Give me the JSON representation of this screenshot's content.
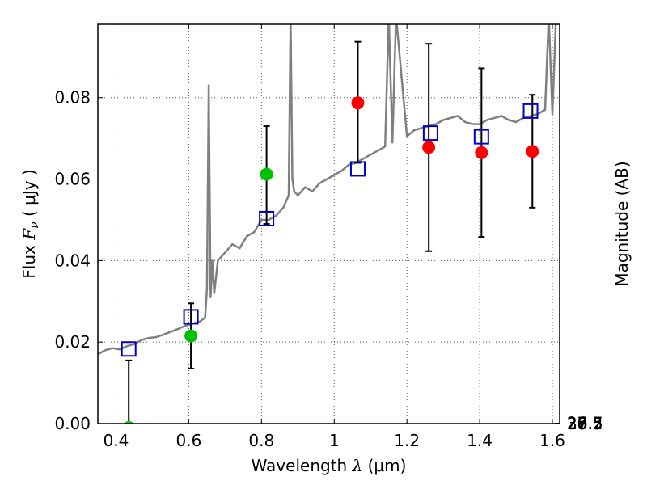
{
  "chart_data": {
    "type": "scatter",
    "title": "",
    "xlabel": "Wavelength  λ (μm)",
    "xlabel_parts": {
      "text": "Wavelength  ",
      "sym": "λ",
      "unit": " (μm)"
    },
    "ylabel": "Flux  Fν  ( μJy )",
    "ylabel_parts": {
      "text": "Flux  ",
      "sym": "F",
      "sub": "ν",
      "unit": "  ( μJy )"
    },
    "ylabel_right": "Magnitude (AB)",
    "xlim": [
      0.35,
      1.62
    ],
    "ylim": [
      0.0,
      0.098
    ],
    "grid": true,
    "x_ticks": [
      0.4,
      0.6,
      0.8,
      1.0,
      1.2,
      1.4,
      1.6
    ],
    "x_tick_labels": [
      "0.4",
      "0.6",
      "0.8",
      "1",
      "1.2",
      "1.4",
      "1.6"
    ],
    "y_ticks": [
      0.0,
      0.02,
      0.04,
      0.06,
      0.08
    ],
    "y_tick_labels": [
      "0.00",
      "0.02",
      "0.04",
      "0.06",
      "0.08"
    ],
    "mag_ticks": [
      26.5,
      26.7,
      27,
      27.2,
      27.5,
      28,
      28.5,
      29,
      30
    ],
    "mag_tick_labels": [
      "26.5",
      "26.7",
      "27",
      "27.2",
      "27.5",
      "28",
      "28.5",
      "29",
      "30"
    ],
    "colors": {
      "model": "#808080",
      "detection": "#00c000",
      "photometry": "#ff0000",
      "model_band": "#0000cc",
      "errorbar": "#000000",
      "grid": "#555555"
    },
    "series": [
      {
        "name": "detections",
        "marker": "circle",
        "color": "#00c000",
        "points": [
          {
            "x": 0.435,
            "y": -0.001,
            "err_lo": 0.0,
            "err_hi": 0.0155
          },
          {
            "x": 0.606,
            "y": 0.0215,
            "err_lo": 0.0135,
            "err_hi": 0.0295
          },
          {
            "x": 0.814,
            "y": 0.0612,
            "err_lo": 0.049,
            "err_hi": 0.073
          }
        ]
      },
      {
        "name": "photometry",
        "marker": "circle",
        "color": "#ff0000",
        "points": [
          {
            "x": 1.065,
            "y": 0.0787,
            "err_lo": 0.064,
            "err_hi": 0.0937
          },
          {
            "x": 1.26,
            "y": 0.0678,
            "err_lo": 0.0423,
            "err_hi": 0.0932
          },
          {
            "x": 1.405,
            "y": 0.0665,
            "err_lo": 0.0458,
            "err_hi": 0.0872
          },
          {
            "x": 1.545,
            "y": 0.0668,
            "err_lo": 0.053,
            "err_hi": 0.0807
          }
        ]
      },
      {
        "name": "model band fluxes",
        "marker": "square",
        "color": "#0000cc",
        "points": [
          {
            "x": 0.435,
            "y": 0.0183
          },
          {
            "x": 0.606,
            "y": 0.0262
          },
          {
            "x": 0.814,
            "y": 0.0503
          },
          {
            "x": 1.065,
            "y": 0.0625
          },
          {
            "x": 1.265,
            "y": 0.0713
          },
          {
            "x": 1.405,
            "y": 0.0704
          },
          {
            "x": 1.54,
            "y": 0.0767
          }
        ]
      }
    ],
    "model_spectrum": {
      "name": "template spectrum",
      "color": "#808080",
      "x": [
        0.35,
        0.37,
        0.39,
        0.41,
        0.43,
        0.45,
        0.47,
        0.49,
        0.51,
        0.53,
        0.55,
        0.57,
        0.59,
        0.61,
        0.63,
        0.645,
        0.65,
        0.655,
        0.66,
        0.665,
        0.67,
        0.68,
        0.7,
        0.72,
        0.74,
        0.76,
        0.78,
        0.8,
        0.82,
        0.84,
        0.86,
        0.875,
        0.88,
        0.885,
        0.89,
        0.9,
        0.92,
        0.94,
        0.96,
        0.98,
        1.0,
        1.02,
        1.04,
        1.06,
        1.08,
        1.1,
        1.12,
        1.14,
        1.15,
        1.16,
        1.17,
        1.2,
        1.22,
        1.24,
        1.26,
        1.28,
        1.3,
        1.32,
        1.34,
        1.36,
        1.38,
        1.4,
        1.42,
        1.44,
        1.46,
        1.48,
        1.5,
        1.52,
        1.54,
        1.56,
        1.58,
        1.59,
        1.6,
        1.61,
        1.62
      ],
      "y": [
        0.017,
        0.018,
        0.0185,
        0.0182,
        0.019,
        0.0195,
        0.0205,
        0.021,
        0.0212,
        0.0218,
        0.0225,
        0.0232,
        0.024,
        0.0245,
        0.025,
        0.026,
        0.033,
        0.083,
        0.031,
        0.04,
        0.032,
        0.04,
        0.042,
        0.044,
        0.043,
        0.046,
        0.047,
        0.05,
        0.05,
        0.051,
        0.053,
        0.056,
        0.1,
        0.06,
        0.057,
        0.056,
        0.058,
        0.057,
        0.059,
        0.06,
        0.061,
        0.062,
        0.0635,
        0.064,
        0.065,
        0.066,
        0.067,
        0.068,
        0.1,
        0.069,
        0.1,
        0.0705,
        0.072,
        0.0725,
        0.073,
        0.0735,
        0.0745,
        0.075,
        0.0755,
        0.074,
        0.0735,
        0.0735,
        0.0745,
        0.075,
        0.0755,
        0.0745,
        0.074,
        0.075,
        0.0755,
        0.076,
        0.077,
        0.1,
        0.076,
        0.1,
        0.1
      ]
    }
  }
}
